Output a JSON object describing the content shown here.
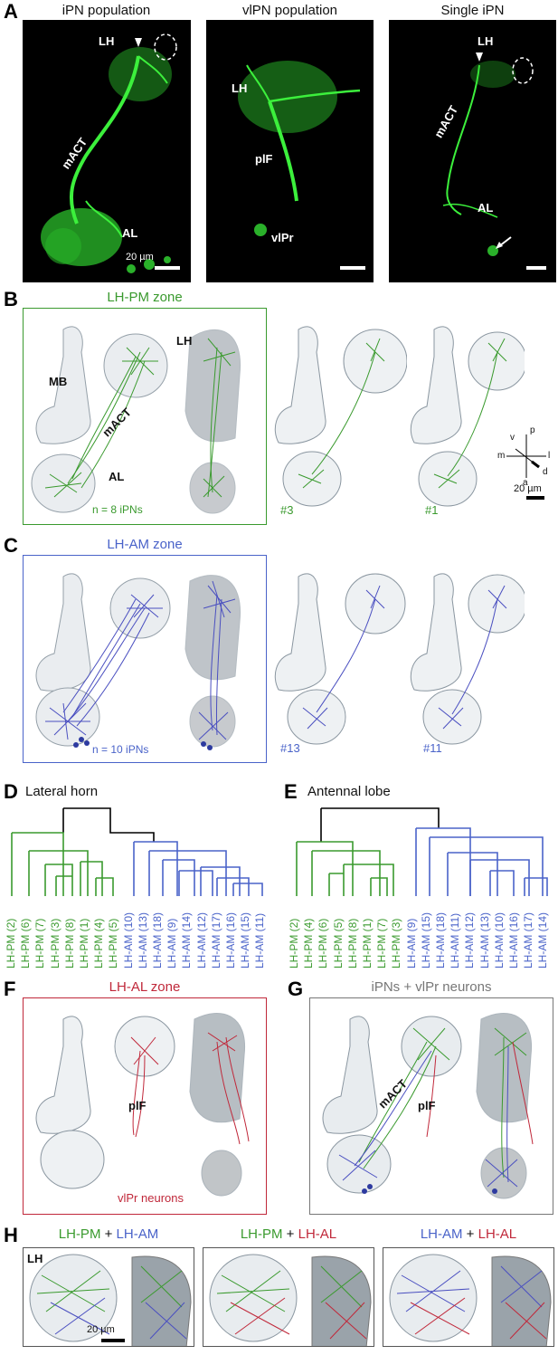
{
  "panel_letters": [
    "A",
    "B",
    "C",
    "D",
    "E",
    "F",
    "G",
    "H"
  ],
  "panel_a": {
    "titles": [
      "iPN population",
      "vlPN population",
      "Single iPN"
    ],
    "labels_1": {
      "lh": "LH",
      "mact": "mACT",
      "al": "AL",
      "scale": "20 µm"
    },
    "labels_2": {
      "lh": "LH",
      "plf": "plF",
      "vlpr": "vlPr"
    },
    "labels_3": {
      "lh": "LH",
      "mact": "mACT",
      "al": "AL"
    }
  },
  "panel_b": {
    "title": "LH-PM zone",
    "labels": {
      "mb": "MB",
      "mact": "mACT",
      "al": "AL",
      "lh": "LH"
    },
    "count": "n = 8 iPNs",
    "examples": [
      "#3",
      "#1"
    ],
    "axes": {
      "v": "v",
      "p": "p",
      "m": "m",
      "l": "l",
      "a": "a",
      "d": "d"
    },
    "scale": "20 µm"
  },
  "panel_c": {
    "title": "LH-AM zone",
    "count": "n = 10 iPNs",
    "examples": [
      "#13",
      "#11"
    ]
  },
  "panel_d": {
    "title": "Lateral horn",
    "leaves": [
      "LH-PM (2)",
      "LH-PM (6)",
      "LH-PM (7)",
      "LH-PM (3)",
      "LH-PM (8)",
      "LH-PM (1)",
      "LH-PM (4)",
      "LH-PM (5)",
      "LH-AM (10)",
      "LH-AM (13)",
      "LH-AM (18)",
      "LH-AM (9)",
      "LH-AM (14)",
      "LH-AM (12)",
      "LH-AM (17)",
      "LH-AM (16)",
      "LH-AM (15)",
      "LH-AM (11)"
    ]
  },
  "panel_e": {
    "title": "Antennal lobe",
    "leaves": [
      "LH-PM (2)",
      "LH-PM (4)",
      "LH-PM (6)",
      "LH-PM (5)",
      "LH-PM (8)",
      "LH-PM (1)",
      "LH-PM (7)",
      "LH-PM (3)",
      "LH-AM (9)",
      "LH-AM (15)",
      "LH-AM (18)",
      "LH-AM (11)",
      "LH-AM (12)",
      "LH-AM (13)",
      "LH-AM (10)",
      "LH-AM (16)",
      "LH-AM (17)",
      "LH-AM (14)"
    ]
  },
  "panel_f": {
    "title": "LH-AL zone",
    "plf": "plF",
    "caption": "vlPr neurons"
  },
  "panel_g": {
    "title": "iPNs + vlPr neurons",
    "mact": "mACT",
    "plf": "plF"
  },
  "panel_h": {
    "titles": [
      {
        "a": "LH-PM",
        "plus": " + ",
        "b": "LH-AM"
      },
      {
        "a": "LH-PM",
        "plus": " + ",
        "b": "LH-AL"
      },
      {
        "a": "LH-AM",
        "plus": " + ",
        "b": "LH-AL"
      }
    ],
    "lh": "LH",
    "scale": "20 µm"
  },
  "colors": {
    "pm": "#3a9a2e",
    "am": "#4a63c9",
    "al": "#c0283a",
    "neuron": "#39e63a",
    "frame_pm": "#3a9a2e",
    "frame_am": "#4a63c9",
    "frame_al": "#c0283a",
    "frame_g": "#777777"
  }
}
